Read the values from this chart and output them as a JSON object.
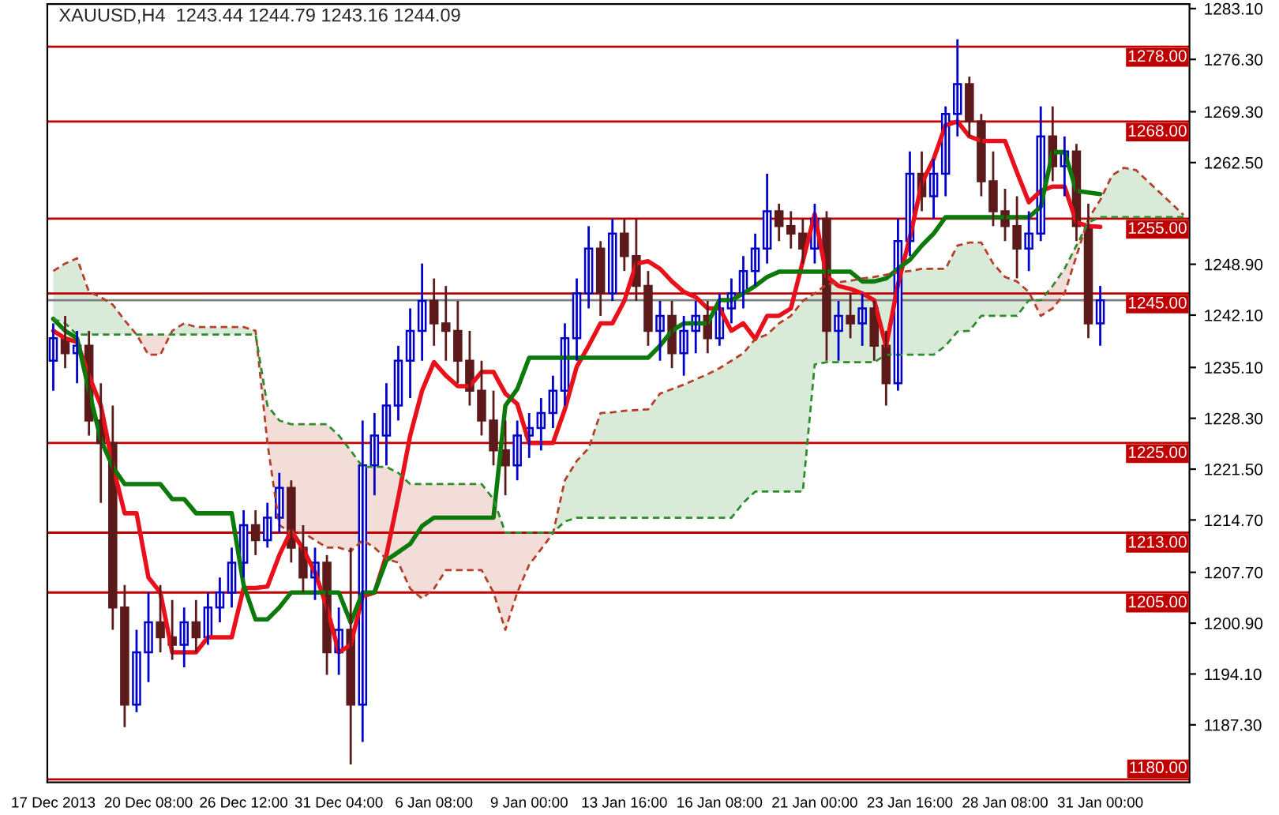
{
  "chart_data": {
    "type": "candlestick",
    "title": "XAUUSD,H4  1243.44 1244.79 1243.16 1244.09",
    "categories": [
      "17 Dec 2013",
      null,
      null,
      null,
      null,
      null,
      null,
      null,
      "20 Dec 08:00",
      null,
      null,
      null,
      null,
      null,
      null,
      null,
      "26 Dec 12:00",
      null,
      null,
      null,
      null,
      null,
      null,
      null,
      "31 Dec 04:00",
      null,
      null,
      null,
      null,
      null,
      null,
      null,
      "6 Jan 08:00",
      null,
      null,
      null,
      null,
      null,
      null,
      null,
      "9 Jan 00:00",
      null,
      null,
      null,
      null,
      null,
      null,
      null,
      "13 Jan 16:00",
      null,
      null,
      null,
      null,
      null,
      null,
      null,
      "16 Jan 08:00",
      null,
      null,
      null,
      null,
      null,
      null,
      null,
      "21 Jan 00:00",
      null,
      null,
      null,
      null,
      null,
      null,
      null,
      "23 Jan 16:00",
      null,
      null,
      null,
      null,
      null,
      null,
      null,
      "28 Jan 08:00",
      null,
      null,
      null,
      null,
      null,
      null,
      null,
      "31 Jan 00:00",
      null,
      null,
      null,
      null,
      null,
      null,
      null
    ],
    "ohlc": [
      [
        1236,
        1241,
        1232,
        1239
      ],
      [
        1239,
        1242,
        1235,
        1237
      ],
      [
        1237,
        1240,
        1233,
        1238
      ],
      [
        1238,
        1240,
        1226,
        1228
      ],
      [
        1228,
        1233,
        1217,
        1225
      ],
      [
        1225,
        1230,
        1200,
        1203
      ],
      [
        1203,
        1206,
        1187,
        1190
      ],
      [
        1190,
        1200,
        1189,
        1197
      ],
      [
        1197,
        1205,
        1193,
        1201
      ],
      [
        1201,
        1206,
        1197,
        1199
      ],
      [
        1199,
        1204,
        1196,
        1198
      ],
      [
        1198,
        1203,
        1195,
        1201
      ],
      [
        1201,
        1204,
        1197,
        1199
      ],
      [
        1199,
        1205,
        1198,
        1203
      ],
      [
        1203,
        1207,
        1201,
        1205
      ],
      [
        1205,
        1211,
        1203,
        1209
      ],
      [
        1209,
        1216,
        1207,
        1214
      ],
      [
        1214,
        1216,
        1210,
        1212
      ],
      [
        1212,
        1217,
        1211,
        1215
      ],
      [
        1215,
        1221,
        1213,
        1219
      ],
      [
        1219,
        1220,
        1209,
        1211
      ],
      [
        1211,
        1214,
        1205,
        1207
      ],
      [
        1207,
        1211,
        1204,
        1209
      ],
      [
        1209,
        1210,
        1194,
        1197
      ],
      [
        1197,
        1203,
        1194,
        1200
      ],
      [
        1200,
        1211,
        1182,
        1190
      ],
      [
        1190,
        1228,
        1185,
        1222
      ],
      [
        1222,
        1229,
        1218,
        1226
      ],
      [
        1226,
        1233,
        1222,
        1230
      ],
      [
        1230,
        1238,
        1228,
        1236
      ],
      [
        1236,
        1243,
        1231,
        1240
      ],
      [
        1240,
        1249,
        1236,
        1244
      ],
      [
        1244,
        1247,
        1238,
        1241
      ],
      [
        1241,
        1246,
        1236,
        1240
      ],
      [
        1240,
        1244,
        1233,
        1236
      ],
      [
        1236,
        1240,
        1230,
        1232
      ],
      [
        1232,
        1236,
        1226,
        1228
      ],
      [
        1228,
        1232,
        1222,
        1224
      ],
      [
        1224,
        1228,
        1218,
        1222
      ],
      [
        1222,
        1228,
        1220,
        1226
      ],
      [
        1226,
        1229,
        1223,
        1227
      ],
      [
        1227,
        1231,
        1224,
        1229
      ],
      [
        1229,
        1234,
        1227,
        1232
      ],
      [
        1232,
        1241,
        1230,
        1239
      ],
      [
        1239,
        1247,
        1236,
        1245
      ],
      [
        1245,
        1254,
        1243,
        1251
      ],
      [
        1251,
        1252,
        1242,
        1245
      ],
      [
        1245,
        1255,
        1244,
        1253
      ],
      [
        1253,
        1255,
        1248,
        1250
      ],
      [
        1250,
        1255,
        1244,
        1246
      ],
      [
        1246,
        1248,
        1238,
        1240
      ],
      [
        1240,
        1244,
        1236,
        1242
      ],
      [
        1242,
        1244,
        1235,
        1237
      ],
      [
        1237,
        1242,
        1234,
        1240
      ],
      [
        1240,
        1244,
        1237,
        1242
      ],
      [
        1242,
        1244,
        1237,
        1239
      ],
      [
        1239,
        1245,
        1238,
        1243
      ],
      [
        1243,
        1247,
        1241,
        1245
      ],
      [
        1245,
        1250,
        1243,
        1248
      ],
      [
        1248,
        1253,
        1246,
        1251
      ],
      [
        1251,
        1261,
        1249,
        1256
      ],
      [
        1256,
        1257,
        1252,
        1254
      ],
      [
        1254,
        1256,
        1251,
        1253
      ],
      [
        1253,
        1255,
        1249,
        1251
      ],
      [
        1251,
        1257,
        1249,
        1255
      ],
      [
        1255,
        1256,
        1236,
        1240
      ],
      [
        1240,
        1244,
        1236,
        1242
      ],
      [
        1242,
        1245,
        1239,
        1241
      ],
      [
        1241,
        1245,
        1238,
        1243
      ],
      [
        1243,
        1244,
        1236,
        1238
      ],
      [
        1238,
        1240,
        1230,
        1233
      ],
      [
        1233,
        1255,
        1232,
        1252
      ],
      [
        1252,
        1264,
        1250,
        1261
      ],
      [
        1261,
        1264,
        1256,
        1258
      ],
      [
        1258,
        1263,
        1255,
        1261
      ],
      [
        1261,
        1270,
        1258,
        1269
      ],
      [
        1269,
        1279,
        1266,
        1273
      ],
      [
        1273,
        1274,
        1266,
        1268
      ],
      [
        1268,
        1269,
        1258,
        1260
      ],
      [
        1260,
        1264,
        1254,
        1256
      ],
      [
        1256,
        1259,
        1252,
        1254
      ],
      [
        1254,
        1258,
        1247,
        1251
      ],
      [
        1251,
        1256,
        1248,
        1253
      ],
      [
        1253,
        1270,
        1252,
        1266
      ],
      [
        1266,
        1270,
        1260,
        1262
      ],
      [
        1262,
        1266,
        1258,
        1264
      ],
      [
        1264,
        1265,
        1252,
        1254
      ],
      [
        1254,
        1257,
        1239,
        1241
      ],
      [
        1241,
        1246,
        1238,
        1244.09
      ],
      null,
      null,
      null,
      null,
      null,
      null,
      null
    ],
    "colors": [
      "#0000cd",
      "#5c1a1a",
      "#0000cd",
      "#5c1a1a",
      "#5c1a1a",
      "#5c1a1a",
      "#5c1a1a",
      "#0000cd",
      "#0000cd",
      "#5c1a1a",
      "#5c1a1a",
      "#0000cd",
      "#5c1a1a",
      "#0000cd",
      "#0000cd",
      "#0000cd",
      "#0000cd",
      "#5c1a1a",
      "#0000cd",
      "#0000cd",
      "#5c1a1a",
      "#5c1a1a",
      "#0000cd",
      "#5c1a1a",
      "#0000cd",
      "#5c1a1a",
      "#0000cd",
      "#0000cd",
      "#0000cd",
      "#0000cd",
      "#0000cd",
      "#0000cd",
      "#5c1a1a",
      "#5c1a1a",
      "#5c1a1a",
      "#5c1a1a",
      "#5c1a1a",
      "#5c1a1a",
      "#5c1a1a",
      "#0000cd",
      "#0000cd",
      "#0000cd",
      "#0000cd",
      "#0000cd",
      "#0000cd",
      "#0000cd",
      "#5c1a1a",
      "#0000cd",
      "#5c1a1a",
      "#5c1a1a",
      "#5c1a1a",
      "#0000cd",
      "#5c1a1a",
      "#0000cd",
      "#0000cd",
      "#5c1a1a",
      "#0000cd",
      "#0000cd",
      "#0000cd",
      "#0000cd",
      "#0000cd",
      "#5c1a1a",
      "#5c1a1a",
      "#5c1a1a",
      "#0000cd",
      "#5c1a1a",
      "#0000cd",
      "#5c1a1a",
      "#0000cd",
      "#5c1a1a",
      "#5c1a1a",
      "#0000cd",
      "#0000cd",
      "#5c1a1a",
      "#0000cd",
      "#0000cd",
      "#0000cd",
      "#5c1a1a",
      "#5c1a1a",
      "#5c1a1a",
      "#5c1a1a",
      "#5c1a1a",
      "#0000cd",
      "#0000cd",
      "#5c1a1a",
      "#0000cd",
      "#5c1a1a",
      "#5c1a1a",
      "#0000cd",
      null,
      null,
      null,
      null,
      null,
      null,
      null
    ],
    "series": [
      {
        "type": "line",
        "color": "#e8101a",
        "line_style": "solid",
        "values": [
          1240,
          1239,
          1238.5,
          1234,
          1230,
          1222,
          1215.6,
          1215.6,
          1207,
          1205,
          1197,
          1197,
          1197,
          1199,
          1199,
          1199,
          1205.6,
          1205.6,
          1205.8,
          1210,
          1213.3,
          1210.8,
          1207.7,
          1203,
          1197,
          1198,
          1204.5,
          1205,
          1210,
          1217.7,
          1226,
          1232,
          1235.8,
          1234,
          1232.6,
          1232.6,
          1234.5,
          1234.5,
          1231.6,
          1230.2,
          1225,
          1225,
          1225,
          1229.5,
          1235.2,
          1238,
          1241,
          1241,
          1244,
          1249,
          1249.3,
          1248.3,
          1246.6,
          1245.2,
          1244.5,
          1243,
          1243,
          1240,
          1241,
          1238.9,
          1242,
          1242,
          1243,
          1249.3,
          1255.6,
          1247.3,
          1246,
          1245.6,
          1245,
          1244.1,
          1237.9,
          1246.2,
          1252.5,
          1259.7,
          1263,
          1267.5,
          1268,
          1266,
          1265.4,
          1265.4,
          1265.4,
          1261.2,
          1257.2,
          1258.7,
          1259.3,
          1259.3,
          1254.5,
          1254,
          1253.9,
          null,
          null,
          null,
          null,
          null,
          null,
          null
        ]
      },
      {
        "type": "line",
        "color": "#0b7a0b",
        "line_style": "solid",
        "values": [
          1241.6,
          1240,
          1239,
          1232,
          1225.4,
          1221.8,
          1219.5,
          1219.5,
          1219.5,
          1219.5,
          1217.5,
          1217.5,
          1215.6,
          1215.6,
          1215.6,
          1215.6,
          1206,
          1201.4,
          1201.4,
          1203,
          1205,
          1205,
          1205,
          1205,
          1205,
          1201,
          1205,
          1205,
          1209.3,
          1210.4,
          1211.5,
          1213.9,
          1215,
          1215,
          1215,
          1215,
          1215,
          1215,
          1230,
          1232.2,
          1236.4,
          1236.4,
          1236.4,
          1236.4,
          1236.4,
          1236.4,
          1236.4,
          1236.4,
          1236.4,
          1236.4,
          1236.4,
          1238,
          1240,
          1241,
          1241,
          1241,
          1244.1,
          1244.1,
          1245,
          1246,
          1247.2,
          1247.9,
          1247.9,
          1247.9,
          1247.9,
          1247.9,
          1247.9,
          1247.9,
          1246.6,
          1246.6,
          1247,
          1248.3,
          1249.5,
          1251.4,
          1253,
          1255.2,
          1255.2,
          1255.2,
          1255.2,
          1255.2,
          1255.2,
          1255.2,
          1255.2,
          1256.6,
          1263.9,
          1263.9,
          1258.7,
          1258.5,
          1258.3,
          null,
          null,
          null,
          null,
          null,
          null,
          null
        ]
      },
      {
        "type": "line",
        "color": "#b5402a",
        "line_style": "dashed",
        "values": [
          1248,
          1249,
          1249.7,
          1245.2,
          1244.5,
          1243.5,
          1241.4,
          1239.5,
          1236.8,
          1236.8,
          1240,
          1241,
          1240.5,
          1240.5,
          1240.5,
          1240.5,
          1240.5,
          1240,
          1225,
          1214,
          1213,
          1213,
          1212,
          1211,
          1211,
          1210.5,
          1212,
          1211,
          1209.5,
          1209,
          1205.5,
          1204.2,
          1205.5,
          1208,
          1208,
          1208,
          1208,
          1205,
          1200,
          1205,
          1208.7,
          1210.8,
          1212.9,
          1220,
          1222.6,
          1224.3,
          1229,
          1229.1,
          1229.3,
          1229.4,
          1229.5,
          1231.6,
          1232.2,
          1232.8,
          1233.5,
          1234.2,
          1235,
          1236,
          1237,
          1238.9,
          1239.5,
          1241,
          1242,
          1244,
          1245,
          1246.2,
          1246.5,
          1246.7,
          1247,
          1247.2,
          1247.5,
          1247.8,
          1248,
          1248.3,
          1248.3,
          1248.3,
          1251.4,
          1251.8,
          1251.8,
          1249,
          1247.2,
          1246.6,
          1245.2,
          1242,
          1243,
          1245,
          1250,
          1255,
          1257.5,
          1260.8,
          1261.8,
          1261.5,
          1260,
          1258.5,
          1257,
          1255.5
        ]
      },
      {
        "type": "line",
        "color": "#2e8b2e",
        "line_style": "dashed",
        "values": [
          1241.6,
          1241,
          1239.5,
          1239.5,
          1239.5,
          1239.5,
          1239.5,
          1239.5,
          1239.5,
          1239.5,
          1239.5,
          1239.5,
          1239.5,
          1239.5,
          1239.5,
          1239.5,
          1239.5,
          1239.5,
          1230,
          1228,
          1227.5,
          1227.5,
          1227.5,
          1227.5,
          1226,
          1224,
          1221.8,
          1221.8,
          1221.8,
          1221,
          1219.5,
          1219.5,
          1219.5,
          1219.5,
          1219.5,
          1219.5,
          1219.5,
          1217.5,
          1213,
          1213,
          1213,
          1213,
          1213,
          1214.5,
          1215,
          1215,
          1215,
          1215,
          1215,
          1215,
          1215,
          1215,
          1215,
          1215,
          1215,
          1215,
          1215,
          1215,
          1217,
          1218.5,
          1218.5,
          1218.5,
          1218.5,
          1218.5,
          1235.5,
          1235.8,
          1235.8,
          1235.8,
          1235.8,
          1235.8,
          1236.8,
          1236.8,
          1236.8,
          1236.8,
          1236.8,
          1238,
          1239.9,
          1240,
          1242,
          1242,
          1242,
          1242,
          1244.1,
          1244.1,
          1246,
          1248.3,
          1251.4,
          1254.5,
          1255.2,
          1255.2,
          1255.2,
          1255.2,
          1255.2,
          1255.2,
          1255.2,
          1255.2
        ]
      }
    ],
    "ylim": [
      1179.6,
      1283.7
    ],
    "yticks": [
      {
        "value": 1283.1,
        "label": "1283.10"
      },
      {
        "value": 1276.3,
        "label": "1276.30"
      },
      {
        "value": 1269.3,
        "label": "1269.30"
      },
      {
        "value": 1262.5,
        "label": "1262.50"
      },
      {
        "value": 1248.9,
        "label": "1248.90"
      },
      {
        "value": 1242.1,
        "label": "1242.10"
      },
      {
        "value": 1235.1,
        "label": "1235.10"
      },
      {
        "value": 1228.3,
        "label": "1228.30"
      },
      {
        "value": 1221.5,
        "label": "1221.50"
      },
      {
        "value": 1214.7,
        "label": "1214.70"
      },
      {
        "value": 1207.7,
        "label": "1207.70"
      },
      {
        "value": 1200.9,
        "label": "1200.90"
      },
      {
        "value": 1194.1,
        "label": "1194.10"
      },
      {
        "value": 1187.3,
        "label": "1187.30"
      }
    ],
    "ref_lines": [
      {
        "axis": "y",
        "value": 1278,
        "label": "1278.00",
        "color": "#c00000"
      },
      {
        "axis": "y",
        "value": 1268,
        "label": "1268.00",
        "color": "#c00000"
      },
      {
        "axis": "y",
        "value": 1255,
        "label": "1255.00",
        "color": "#c00000"
      },
      {
        "axis": "y",
        "value": 1245,
        "label": "1245.00",
        "color": "#c00000"
      },
      {
        "axis": "y",
        "value": 1244.09,
        "color": "#808080"
      },
      {
        "axis": "y",
        "value": 1225,
        "label": "1225.00",
        "color": "#c00000"
      },
      {
        "axis": "y",
        "value": 1213,
        "label": "1213.00",
        "color": "#c00000"
      },
      {
        "axis": "y",
        "value": 1205,
        "label": "1205.00",
        "color": "#c00000"
      },
      {
        "axis": "y",
        "value": 1180,
        "label": "1180.00",
        "color": "#c00000"
      }
    ],
    "grid": false,
    "legend": false
  }
}
